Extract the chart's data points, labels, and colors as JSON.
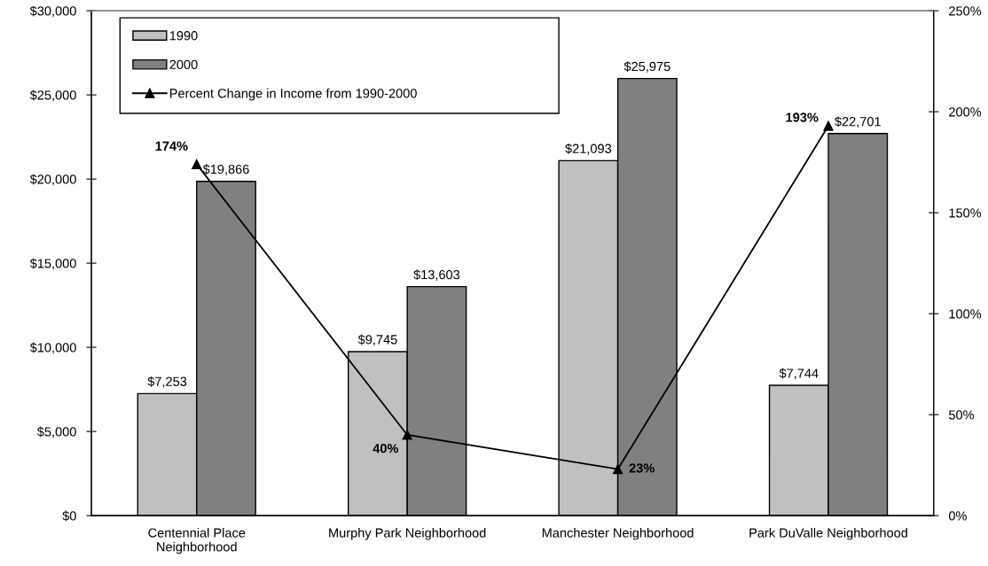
{
  "chart_data": {
    "type": "bar",
    "categories": [
      "Centennial Place\nNeighborhood",
      "Murphy Park Neighborhood",
      "Manchester Neighborhood",
      "Park DuValle Neighborhood"
    ],
    "series": [
      {
        "name": "1990",
        "color": "#c0c0c0",
        "values": [
          7253,
          9745,
          21093,
          7744
        ],
        "value_labels": [
          "$7,253",
          "$9,745",
          "$21,093",
          "$7,744"
        ]
      },
      {
        "name": "2000",
        "color": "#808080",
        "values": [
          19866,
          13603,
          25975,
          22701
        ],
        "value_labels": [
          "$19,866",
          "$13,603",
          "$25,975",
          "$22,701"
        ]
      },
      {
        "name": "Percent Change in Income from 1990-2000",
        "type": "line",
        "axis": "y2",
        "color": "#000000",
        "values": [
          174,
          40,
          23,
          193
        ],
        "value_labels": [
          "174%",
          "40%",
          "23%",
          "193%"
        ]
      }
    ],
    "ylim": [
      0,
      30000
    ],
    "yticks": [
      {
        "value": 0,
        "label": "$0"
      },
      {
        "value": 5000,
        "label": "$5,000"
      },
      {
        "value": 10000,
        "label": "$10,000"
      },
      {
        "value": 15000,
        "label": "$15,000"
      },
      {
        "value": 20000,
        "label": "$20,000"
      },
      {
        "value": 25000,
        "label": "$25,000"
      },
      {
        "value": 30000,
        "label": "$30,000"
      }
    ],
    "y2lim": [
      0,
      250
    ],
    "y2ticks": [
      {
        "value": 0,
        "label": "0%"
      },
      {
        "value": 50,
        "label": "50%"
      },
      {
        "value": 100,
        "label": "100%"
      },
      {
        "value": 150,
        "label": "150%"
      },
      {
        "value": 200,
        "label": "200%"
      },
      {
        "value": 250,
        "label": "250%"
      }
    ],
    "legend": "top left",
    "marker": "triangle",
    "line_style": "solid"
  }
}
